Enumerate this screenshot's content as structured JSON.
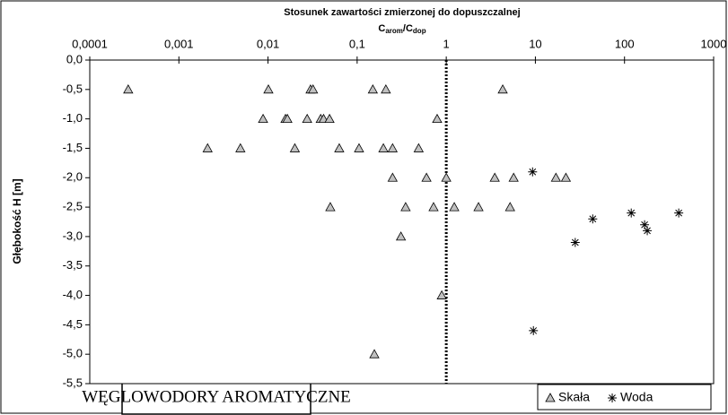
{
  "chart_data": {
    "type": "scatter",
    "title": "Stosunek zawartości zmierzonej do dopuszczalnej",
    "x_label_parts": [
      "C",
      "arom",
      "/C",
      "dop"
    ],
    "y_label": "Głębokość H [m]",
    "annotation": "WĘGLOWODORY AROMATYCZNE",
    "x_log": true,
    "x_axis_position": "top",
    "xlim": [
      0.0001,
      1000
    ],
    "xticks": [
      {
        "value": 0.0001,
        "label": "0,0001"
      },
      {
        "value": 0.001,
        "label": "0,001"
      },
      {
        "value": 0.01,
        "label": "0,01"
      },
      {
        "value": 0.1,
        "label": "0,1"
      },
      1,
      10,
      100,
      1000
    ],
    "ylim": [
      -5.5,
      0
    ],
    "yticks": [
      {
        "value": 0,
        "label": "0,0"
      },
      {
        "value": -0.5,
        "label": "-0,5"
      },
      {
        "value": -1,
        "label": "-1,0"
      },
      {
        "value": -1.5,
        "label": "-1,5"
      },
      {
        "value": -2,
        "label": "-2,0"
      },
      {
        "value": -2.5,
        "label": "-2,5"
      },
      {
        "value": -3,
        "label": "-3,0"
      },
      {
        "value": -3.5,
        "label": "-3,5"
      },
      {
        "value": -4,
        "label": "-4,0"
      },
      {
        "value": -4.5,
        "label": "-4,5"
      },
      {
        "value": -5,
        "label": "-5,0"
      },
      {
        "value": -5.5,
        "label": "-5,5"
      }
    ],
    "reference_line_x": 1,
    "legend": "bottom-right",
    "series": [
      {
        "name": "Skała",
        "marker": "triangle",
        "color": "#c0c0c0",
        "x": [
          0.00027,
          0.0101,
          0.03,
          0.032,
          0.15,
          0.21,
          4.3,
          0.0088,
          0.0157,
          0.0165,
          0.0275,
          0.039,
          0.042,
          0.049,
          0.79,
          0.0021,
          0.0049,
          0.02,
          0.063,
          0.105,
          0.197,
          0.25,
          0.49,
          0.25,
          0.6,
          1.0,
          3.5,
          5.7,
          17,
          22,
          0.05,
          0.35,
          0.72,
          1.23,
          2.3,
          5.2,
          0.31,
          0.89,
          0.156
        ],
        "values": [
          -0.5,
          -0.5,
          -0.5,
          -0.5,
          -0.5,
          -0.5,
          -0.5,
          -1,
          -1,
          -1,
          -1,
          -1,
          -1,
          -1,
          -1,
          -1.5,
          -1.5,
          -1.5,
          -1.5,
          -1.5,
          -1.5,
          -1.5,
          -1.5,
          -2,
          -2,
          -2,
          -2,
          -2,
          -2,
          -2,
          -2.5,
          -2.5,
          -2.5,
          -2.5,
          -2.5,
          -2.5,
          -3,
          -4,
          -5
        ]
      },
      {
        "name": "Woda",
        "marker": "star",
        "color": "#000000",
        "x": [
          9.3,
          44,
          28,
          119,
          168,
          180,
          406,
          9.5
        ],
        "values": [
          -1.9,
          -2.7,
          -3.1,
          -2.6,
          -2.8,
          -2.9,
          -2.6,
          -4.6
        ]
      }
    ]
  }
}
